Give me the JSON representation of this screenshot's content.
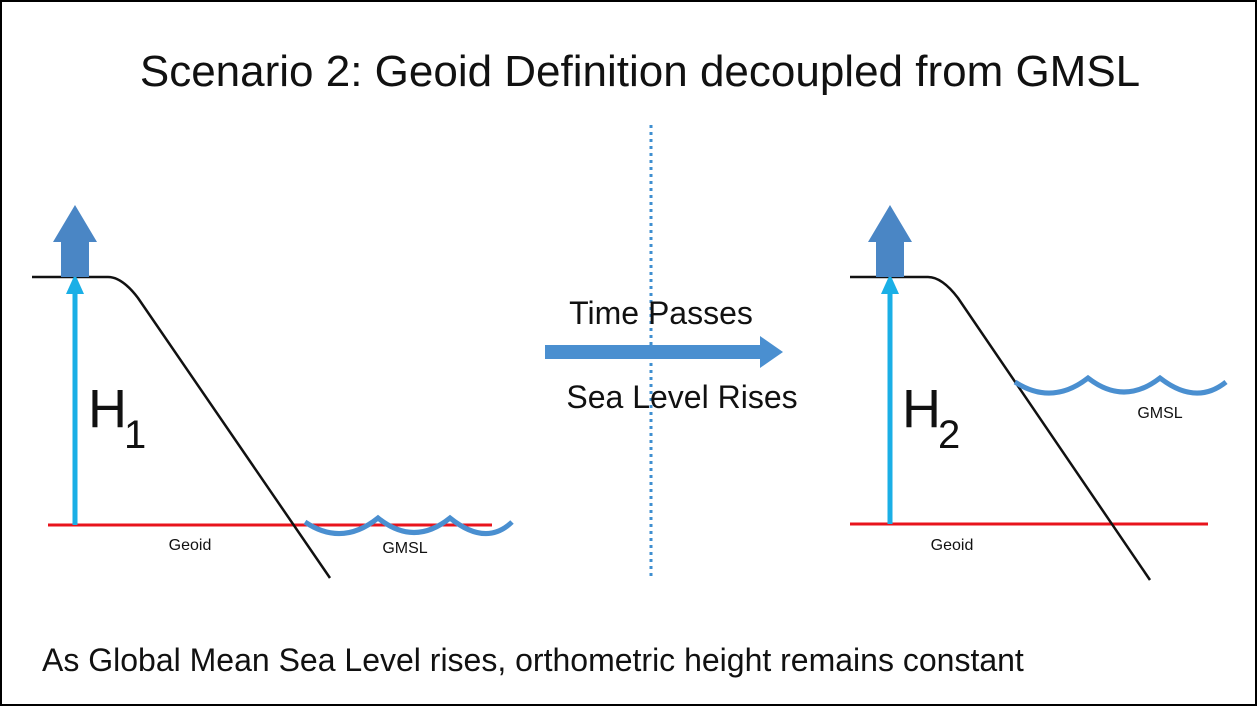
{
  "title": "Scenario 2:  Geoid Definition decoupled from GMSL",
  "left": {
    "height_label": "H",
    "height_subscript": "1",
    "geoid_label": "Geoid",
    "gmsl_label": "GMSL"
  },
  "center": {
    "top_text": "Time Passes",
    "bottom_text": "Sea Level Rises"
  },
  "right": {
    "height_label": "H",
    "height_subscript": "2",
    "geoid_label": "Geoid",
    "gmsl_label": "GMSL"
  },
  "caption": "As Global Mean Sea Level rises, orthometric height remains constant"
}
